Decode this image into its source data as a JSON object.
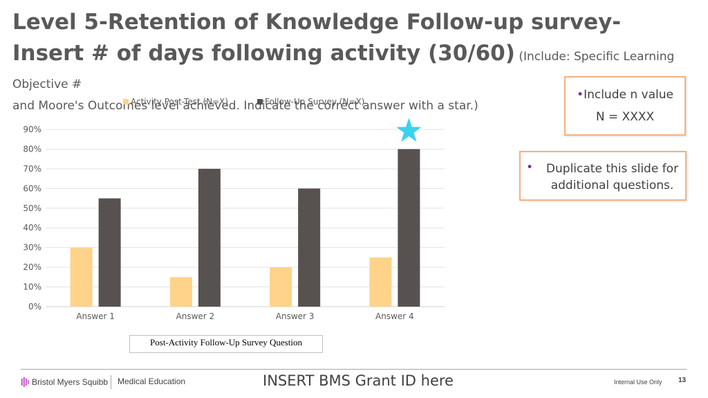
{
  "slide": {
    "title_main": "Level 5-Retention of Knowledge Follow-up survey- Insert # of days following activity (30/60)",
    "title_sub": " (Include: Specific Learning Objective #",
    "title_sub2": "and Moore's Outcomes level achieved. Indicate the correct answer with a star.)"
  },
  "callouts": {
    "n_value_bullet": "•",
    "n_value_label": "Include n value",
    "n_value": "N = XXXX",
    "duplicate_bullet": "•",
    "duplicate_text": "Duplicate this slide for additional questions."
  },
  "chart_caption": "Post-Activity Follow-Up Survey Question",
  "chart_data": {
    "type": "bar",
    "categories": [
      "Answer 1",
      "Answer 2",
      "Answer 3",
      "Answer 4"
    ],
    "series": [
      {
        "name": "Activity Post-Test (N=X)",
        "values": [
          0.3,
          0.15,
          0.2,
          0.25
        ],
        "color": "#ffd38a"
      },
      {
        "name": "Follow-Up Survey (N=X)",
        "values": [
          0.55,
          0.7,
          0.6,
          0.8
        ],
        "color": "#575250"
      }
    ],
    "ylim": [
      0,
      0.9
    ],
    "yticks": [
      "0%",
      "10%",
      "20%",
      "30%",
      "40%",
      "50%",
      "60%",
      "70%",
      "80%",
      "90%"
    ],
    "grid": true,
    "legend": "top-center",
    "correct_answer": "Answer 4",
    "star_color": "#3bd2ee"
  },
  "footer": {
    "company": "Bristol Myers Squibb",
    "department": "Medical Education",
    "grant": "INSERT BMS Grant ID here",
    "internal": "Internal Use Only",
    "page": "13"
  }
}
